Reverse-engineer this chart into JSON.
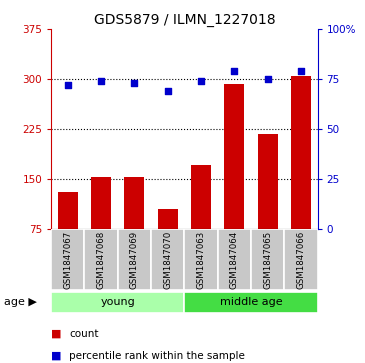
{
  "title": "GDS5879 / ILMN_1227018",
  "categories": [
    "GSM1847067",
    "GSM1847068",
    "GSM1847069",
    "GSM1847070",
    "GSM1847063",
    "GSM1847064",
    "GSM1847065",
    "GSM1847066"
  ],
  "bar_values": [
    130,
    152,
    152,
    105,
    170,
    293,
    218,
    305
  ],
  "percentile_values": [
    72,
    74,
    73,
    69,
    74,
    79,
    75,
    79
  ],
  "groups": [
    {
      "label": "young",
      "indices": [
        0,
        3
      ],
      "color": "#aaffaa"
    },
    {
      "label": "middle age",
      "indices": [
        4,
        7
      ],
      "color": "#44dd44"
    }
  ],
  "ylim_left": [
    75,
    375
  ],
  "ylim_right": [
    0,
    100
  ],
  "yticks_left": [
    75,
    150,
    225,
    300,
    375
  ],
  "yticks_right": [
    0,
    25,
    50,
    75,
    100
  ],
  "bar_color": "#cc0000",
  "point_color": "#0000cc",
  "tick_label_gray_bg": "#c8c8c8",
  "left_axis_color": "#cc0000",
  "right_axis_color": "#0000cc",
  "legend_count_label": "count",
  "legend_percentile_label": "percentile rank within the sample",
  "age_label": "age",
  "bar_width": 0.6
}
